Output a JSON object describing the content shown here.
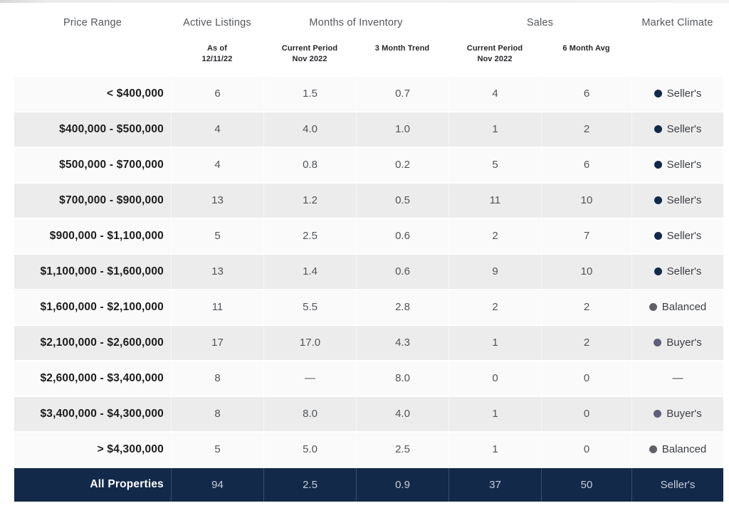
{
  "table": {
    "group_headers": [
      "Price Range",
      "Active Listings",
      "Months of Inventory",
      "Sales",
      "Market Climate"
    ],
    "sub_headers": [
      "",
      "As of\n12/11/22",
      "Current Period\nNov 2022",
      "3 Month Trend",
      "Current Period\nNov 2022",
      "6 Month Avg",
      ""
    ],
    "rows": [
      {
        "price": "< $400,000",
        "active": "6",
        "moi_current": "1.5",
        "moi_trend": "0.7",
        "sales_current": "4",
        "sales_avg": "6",
        "climate": "Seller's",
        "climate_type": "seller"
      },
      {
        "price": "$400,000 - $500,000",
        "active": "4",
        "moi_current": "4.0",
        "moi_trend": "1.0",
        "sales_current": "1",
        "sales_avg": "2",
        "climate": "Seller's",
        "climate_type": "seller"
      },
      {
        "price": "$500,000 - $700,000",
        "active": "4",
        "moi_current": "0.8",
        "moi_trend": "0.2",
        "sales_current": "5",
        "sales_avg": "6",
        "climate": "Seller's",
        "climate_type": "seller"
      },
      {
        "price": "$700,000 - $900,000",
        "active": "13",
        "moi_current": "1.2",
        "moi_trend": "0.5",
        "sales_current": "11",
        "sales_avg": "10",
        "climate": "Seller's",
        "climate_type": "seller"
      },
      {
        "price": "$900,000 - $1,100,000",
        "active": "5",
        "moi_current": "2.5",
        "moi_trend": "0.6",
        "sales_current": "2",
        "sales_avg": "7",
        "climate": "Seller's",
        "climate_type": "seller"
      },
      {
        "price": "$1,100,000 - $1,600,000",
        "active": "13",
        "moi_current": "1.4",
        "moi_trend": "0.6",
        "sales_current": "9",
        "sales_avg": "10",
        "climate": "Seller's",
        "climate_type": "seller"
      },
      {
        "price": "$1,600,000 - $2,100,000",
        "active": "11",
        "moi_current": "5.5",
        "moi_trend": "2.8",
        "sales_current": "2",
        "sales_avg": "2",
        "climate": "Balanced",
        "climate_type": "balanced"
      },
      {
        "price": "$2,100,000 - $2,600,000",
        "active": "17",
        "moi_current": "17.0",
        "moi_trend": "4.3",
        "sales_current": "1",
        "sales_avg": "2",
        "climate": "Buyer's",
        "climate_type": "buyer"
      },
      {
        "price": "$2,600,000 - $3,400,000",
        "active": "8",
        "moi_current": "—",
        "moi_trend": "8.0",
        "sales_current": "0",
        "sales_avg": "0",
        "climate": "—",
        "climate_type": "none"
      },
      {
        "price": "$3,400,000 - $4,300,000",
        "active": "8",
        "moi_current": "8.0",
        "moi_trend": "4.0",
        "sales_current": "1",
        "sales_avg": "0",
        "climate": "Buyer's",
        "climate_type": "buyer"
      },
      {
        "price": "> $4,300,000",
        "active": "5",
        "moi_current": "5.0",
        "moi_trend": "2.5",
        "sales_current": "1",
        "sales_avg": "0",
        "climate": "Balanced",
        "climate_type": "balanced"
      }
    ],
    "total_row": {
      "price": "All Properties",
      "active": "94",
      "moi_current": "2.5",
      "moi_trend": "0.9",
      "sales_current": "37",
      "sales_avg": "50",
      "climate": "Seller's",
      "climate_type": "none"
    }
  },
  "colors": {
    "seller_dot": "#12294a",
    "balanced_dot": "#5e6065",
    "buyer_dot": "#5d6078",
    "total_row_bg": "#12294a",
    "row_bg": "#fafafa",
    "row_alt_bg": "#ececec"
  },
  "chart_data": {
    "type": "table",
    "columns": [
      "Price Range",
      "Active Listings — As of 12/11/22",
      "Months of Inventory — Current Period Nov 2022",
      "Months of Inventory — 3 Month Trend",
      "Sales — Current Period Nov 2022",
      "Sales — 6 Month Avg",
      "Market Climate"
    ],
    "rows": [
      [
        "< $400,000",
        6,
        1.5,
        0.7,
        4,
        6,
        "Seller's"
      ],
      [
        "$400,000 - $500,000",
        4,
        4.0,
        1.0,
        1,
        2,
        "Seller's"
      ],
      [
        "$500,000 - $700,000",
        4,
        0.8,
        0.2,
        5,
        6,
        "Seller's"
      ],
      [
        "$700,000 - $900,000",
        13,
        1.2,
        0.5,
        11,
        10,
        "Seller's"
      ],
      [
        "$900,000 - $1,100,000",
        5,
        2.5,
        0.6,
        2,
        7,
        "Seller's"
      ],
      [
        "$1,100,000 - $1,600,000",
        13,
        1.4,
        0.6,
        9,
        10,
        "Seller's"
      ],
      [
        "$1,600,000 - $2,100,000",
        11,
        5.5,
        2.8,
        2,
        2,
        "Balanced"
      ],
      [
        "$2,100,000 - $2,600,000",
        17,
        17.0,
        4.3,
        1,
        2,
        "Buyer's"
      ],
      [
        "$2,600,000 - $3,400,000",
        8,
        null,
        8.0,
        0,
        0,
        null
      ],
      [
        "$3,400,000 - $4,300,000",
        8,
        8.0,
        4.0,
        1,
        0,
        "Buyer's"
      ],
      [
        "> $4,300,000",
        5,
        5.0,
        2.5,
        1,
        0,
        "Balanced"
      ],
      [
        "All Properties",
        94,
        2.5,
        0.9,
        37,
        50,
        "Seller's"
      ]
    ]
  }
}
